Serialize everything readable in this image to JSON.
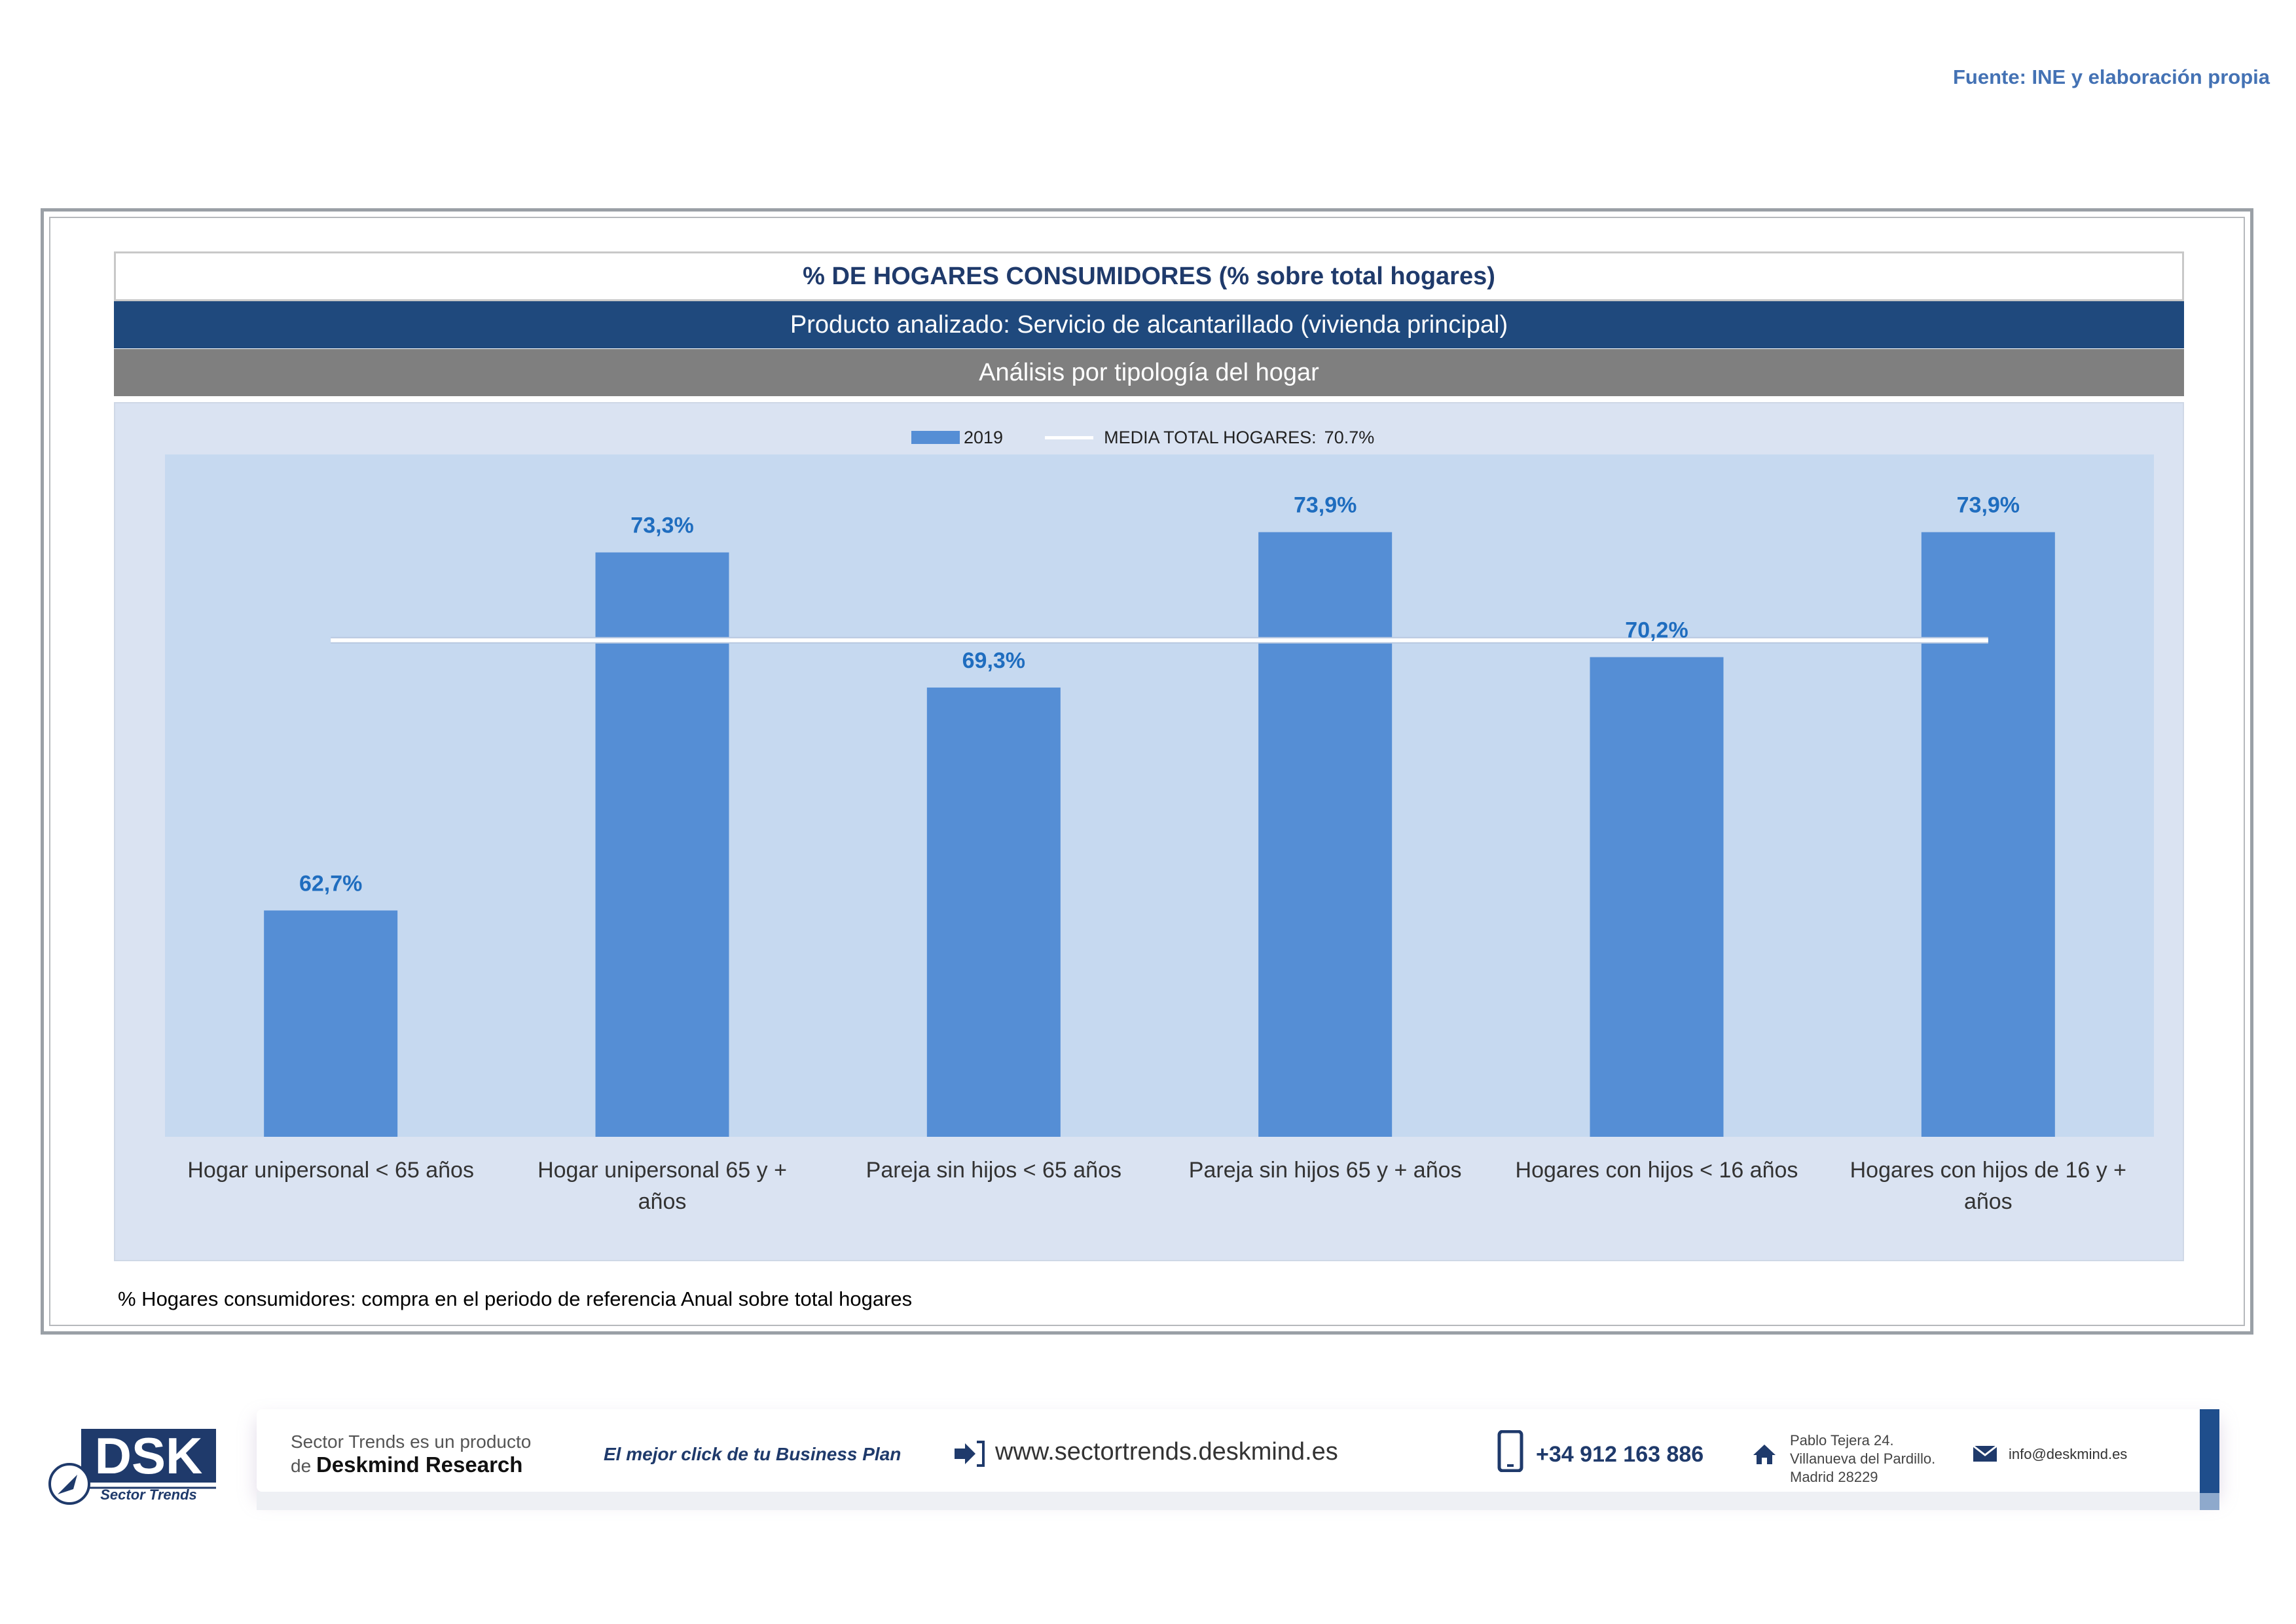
{
  "header": {
    "source": "Fuente: INE y elaboración propia"
  },
  "panel": {
    "title": "% DE HOGARES CONSUMIDORES (% sobre total hogares)",
    "product": "Producto analizado: Servicio de alcantarillado (vivienda principal)",
    "analysis": "Análisis por tipología del hogar",
    "note": "% Hogares consumidores: compra en el periodo de referencia Anual sobre total hogares"
  },
  "chart_data": {
    "type": "bar",
    "title": "% DE HOGARES CONSUMIDORES (% sobre total hogares)",
    "categories": [
      "Hogar unipersonal < 65 años",
      "Hogar unipersonal  65 y + años",
      "Pareja sin hijos < 65 años",
      "Pareja sin hijos 65 y + años",
      "Hogares con hijos < 16 años",
      "Hogares con hijos de 16 y + años"
    ],
    "category_lines": [
      [
        "Hogar unipersonal < 65 años"
      ],
      [
        "Hogar unipersonal  65 y +",
        "años"
      ],
      [
        "Pareja sin hijos < 65 años"
      ],
      [
        "Pareja sin hijos 65 y + años"
      ],
      [
        "Hogares con hijos < 16 años"
      ],
      [
        "Hogares con hijos de 16 y +",
        "años"
      ]
    ],
    "series": [
      {
        "name": "2019",
        "values": [
          62.7,
          73.3,
          69.3,
          73.9,
          70.2,
          73.9
        ]
      }
    ],
    "value_labels": [
      "62,7%",
      "73,3%",
      "69,3%",
      "73,9%",
      "70,2%",
      "73,9%"
    ],
    "reference_line": {
      "name": "MEDIA TOTAL  HOGARES:",
      "value": 70.7,
      "label": "70.7%"
    },
    "legend": {
      "bar_label": "2019",
      "line_label": "MEDIA TOTAL  HOGARES:",
      "line_value": "70.7%",
      "position": "top-center"
    },
    "ylim": [
      56,
      76.2
    ],
    "grid": false,
    "colors": {
      "bar": "#558ed5",
      "plot_bg": "#c6d9f0",
      "label": "#1f6dbf",
      "line": "#ffffff"
    }
  },
  "footer": {
    "logo_text": "DSK",
    "logo_sub": "Sector Trends",
    "line1": "Sector Trends es un producto",
    "line2_pre": "de ",
    "line2_brand": "Deskmind Research",
    "slogan": "El mejor click de tu Business Plan",
    "website": "www.sectortrends.deskmind.es",
    "phone": "+34 912 163 886",
    "address1": "Pablo Tejera 24.",
    "address2": "Villanueva del Pardillo.",
    "address3": "Madrid 28229",
    "email": "info@deskmind.es"
  }
}
